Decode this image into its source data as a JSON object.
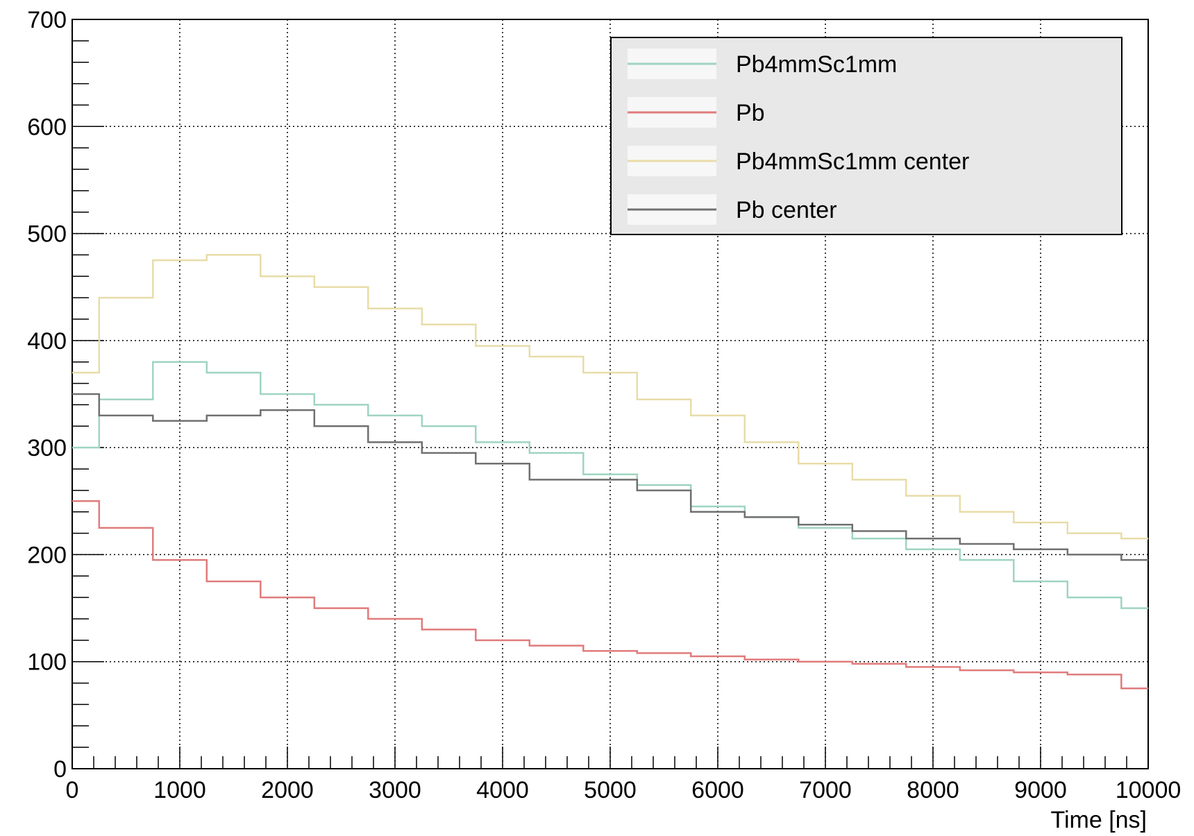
{
  "chart_data": {
    "type": "line",
    "title": "",
    "xlabel": "Time [ns]",
    "ylabel": "",
    "xlim": [
      0,
      10000
    ],
    "ylim": [
      0,
      700
    ],
    "grid": true,
    "legend_position": "top-right",
    "x_ticks": [
      "0",
      "1000",
      "2000",
      "3000",
      "4000",
      "5000",
      "6000",
      "7000",
      "8000",
      "9000",
      "10000"
    ],
    "y_ticks": [
      "0",
      "100",
      "200",
      "300",
      "400",
      "500",
      "600",
      "700"
    ],
    "x": [
      0,
      500,
      1000,
      1500,
      2000,
      2500,
      3000,
      3500,
      4000,
      4500,
      5000,
      5500,
      6000,
      6500,
      7000,
      7500,
      8000,
      8500,
      9000,
      9500,
      10000
    ],
    "series": [
      {
        "name": "Pb4mmSc1mm",
        "color": "#9fd4c0",
        "values": [
          300,
          345,
          380,
          370,
          350,
          340,
          330,
          320,
          305,
          295,
          275,
          265,
          245,
          235,
          225,
          215,
          205,
          195,
          175,
          160,
          150
        ]
      },
      {
        "name": "Pb",
        "color": "#e07b7b",
        "values": [
          250,
          225,
          195,
          175,
          160,
          150,
          140,
          130,
          120,
          115,
          110,
          108,
          105,
          102,
          100,
          98,
          95,
          92,
          90,
          88,
          75
        ]
      },
      {
        "name": "Pb4mmSc1mm center",
        "color": "#e8dca8",
        "values": [
          370,
          440,
          475,
          480,
          460,
          450,
          430,
          415,
          395,
          385,
          370,
          345,
          330,
          305,
          285,
          270,
          255,
          240,
          230,
          220,
          215
        ]
      },
      {
        "name": "Pb center",
        "color": "#707070",
        "values": [
          350,
          330,
          325,
          330,
          335,
          320,
          305,
          295,
          285,
          270,
          270,
          260,
          240,
          235,
          228,
          222,
          215,
          210,
          205,
          200,
          195
        ]
      }
    ]
  }
}
